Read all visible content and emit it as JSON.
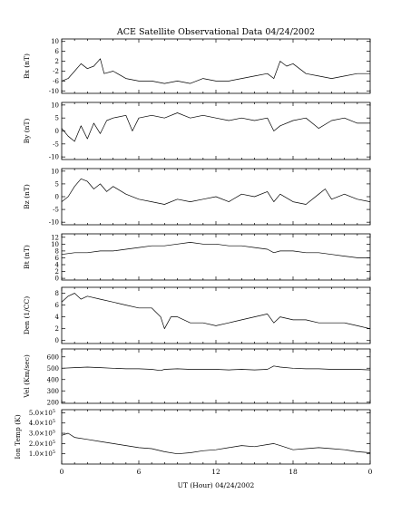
{
  "chart_data": {
    "type": "line",
    "title": "ACE Satellite Observational Data   04/24/2002",
    "xlabel": "UT (Hour)   04/24/2002",
    "x_tick_labels": [
      "0",
      "6",
      "12",
      "18",
      "0"
    ],
    "xlim": [
      0,
      24
    ],
    "panels": [
      {
        "ylabel": "Bx (nT)",
        "ylim": [
          -11,
          11
        ],
        "yticks": [
          10,
          6,
          2,
          -2,
          -6,
          -10
        ],
        "ytick_labels": [
          "10",
          "6",
          "2",
          "-2",
          "-6",
          "-10"
        ],
        "points": [
          [
            0,
            -6
          ],
          [
            0.5,
            -5
          ],
          [
            1,
            -2
          ],
          [
            1.5,
            1
          ],
          [
            2,
            -1
          ],
          [
            2.5,
            0
          ],
          [
            3,
            3
          ],
          [
            3.3,
            -3
          ],
          [
            4,
            -2
          ],
          [
            5,
            -5
          ],
          [
            6,
            -6
          ],
          [
            7,
            -6
          ],
          [
            8,
            -7
          ],
          [
            9,
            -6
          ],
          [
            10,
            -7
          ],
          [
            11,
            -5
          ],
          [
            12,
            -6
          ],
          [
            13,
            -6
          ],
          [
            14,
            -5
          ],
          [
            15,
            -4
          ],
          [
            16,
            -3
          ],
          [
            16.5,
            -5
          ],
          [
            17,
            2
          ],
          [
            17.5,
            0
          ],
          [
            18,
            1
          ],
          [
            19,
            -3
          ],
          [
            20,
            -4
          ],
          [
            21,
            -5
          ],
          [
            22,
            -4
          ],
          [
            23,
            -3
          ],
          [
            24,
            -3
          ]
        ]
      },
      {
        "ylabel": "By (nT)",
        "ylim": [
          -11,
          11
        ],
        "yticks": [
          10,
          5,
          0,
          -5,
          -10
        ],
        "ytick_labels": [
          "10",
          "5",
          "0",
          "-5",
          "-10"
        ],
        "points": [
          [
            0,
            1
          ],
          [
            0.5,
            -2
          ],
          [
            1,
            -4
          ],
          [
            1.5,
            2
          ],
          [
            2,
            -3
          ],
          [
            2.5,
            3
          ],
          [
            3,
            -1
          ],
          [
            3.5,
            4
          ],
          [
            4,
            5
          ],
          [
            5,
            6
          ],
          [
            5.5,
            0
          ],
          [
            6,
            5
          ],
          [
            7,
            6
          ],
          [
            8,
            5
          ],
          [
            9,
            7
          ],
          [
            10,
            5
          ],
          [
            11,
            6
          ],
          [
            12,
            5
          ],
          [
            13,
            4
          ],
          [
            14,
            5
          ],
          [
            15,
            4
          ],
          [
            16,
            5
          ],
          [
            16.5,
            0
          ],
          [
            17,
            2
          ],
          [
            18,
            4
          ],
          [
            19,
            5
          ],
          [
            20,
            1
          ],
          [
            21,
            4
          ],
          [
            22,
            5
          ],
          [
            23,
            3
          ],
          [
            24,
            3
          ]
        ]
      },
      {
        "ylabel": "Bz (nT)",
        "ylim": [
          -11,
          11
        ],
        "yticks": [
          10,
          5,
          0,
          -5,
          -10
        ],
        "ytick_labels": [
          "10",
          "5",
          "0",
          "-5",
          "-10"
        ],
        "points": [
          [
            0,
            -2
          ],
          [
            0.5,
            0
          ],
          [
            1,
            4
          ],
          [
            1.5,
            7
          ],
          [
            2,
            6
          ],
          [
            2.5,
            3
          ],
          [
            3,
            5
          ],
          [
            3.5,
            2
          ],
          [
            4,
            4
          ],
          [
            5,
            1
          ],
          [
            6,
            -1
          ],
          [
            7,
            -2
          ],
          [
            8,
            -3
          ],
          [
            9,
            -1
          ],
          [
            10,
            -2
          ],
          [
            11,
            -1
          ],
          [
            12,
            0
          ],
          [
            13,
            -2
          ],
          [
            14,
            1
          ],
          [
            15,
            0
          ],
          [
            16,
            2
          ],
          [
            16.5,
            -2
          ],
          [
            17,
            1
          ],
          [
            18,
            -2
          ],
          [
            19,
            -3
          ],
          [
            20,
            1
          ],
          [
            20.5,
            3
          ],
          [
            21,
            -1
          ],
          [
            22,
            1
          ],
          [
            23,
            -1
          ],
          [
            24,
            -2
          ]
        ]
      },
      {
        "ylabel": "Bt (nT)",
        "ylim": [
          -0.5,
          13
        ],
        "yticks": [
          12,
          10,
          8,
          6,
          4,
          2,
          0
        ],
        "ytick_labels": [
          "12",
          "10",
          "8",
          "6",
          "4",
          "2",
          "0"
        ],
        "points": [
          [
            0,
            7
          ],
          [
            1,
            7.5
          ],
          [
            2,
            7.5
          ],
          [
            3,
            8
          ],
          [
            4,
            8
          ],
          [
            5,
            8.5
          ],
          [
            6,
            9
          ],
          [
            7,
            9.5
          ],
          [
            8,
            9.5
          ],
          [
            9,
            10
          ],
          [
            10,
            10.5
          ],
          [
            11,
            10
          ],
          [
            12,
            10
          ],
          [
            13,
            9.5
          ],
          [
            14,
            9.5
          ],
          [
            15,
            9
          ],
          [
            16,
            8.5
          ],
          [
            16.5,
            7.5
          ],
          [
            17,
            8
          ],
          [
            18,
            8
          ],
          [
            19,
            7.5
          ],
          [
            20,
            7.5
          ],
          [
            21,
            7
          ],
          [
            22,
            6.5
          ],
          [
            23,
            6
          ],
          [
            24,
            6
          ]
        ]
      },
      {
        "ylabel": "Den (1/CC)",
        "ylim": [
          -0.5,
          9
        ],
        "yticks": [
          8,
          6,
          4,
          2,
          0
        ],
        "ytick_labels": [
          "8",
          "6",
          "4",
          "2",
          "0"
        ],
        "points": [
          [
            0,
            6.5
          ],
          [
            0.5,
            7.5
          ],
          [
            1,
            8
          ],
          [
            1.5,
            7
          ],
          [
            2,
            7.5
          ],
          [
            3,
            7
          ],
          [
            4,
            6.5
          ],
          [
            5,
            6
          ],
          [
            6,
            5.5
          ],
          [
            7,
            5.5
          ],
          [
            7.7,
            4
          ],
          [
            8,
            2
          ],
          [
            8.5,
            4
          ],
          [
            9,
            4
          ],
          [
            10,
            3
          ],
          [
            11,
            3
          ],
          [
            12,
            2.5
          ],
          [
            13,
            3
          ],
          [
            14,
            3.5
          ],
          [
            15,
            4
          ],
          [
            16,
            4.5
          ],
          [
            16.5,
            3
          ],
          [
            17,
            4
          ],
          [
            18,
            3.5
          ],
          [
            19,
            3.5
          ],
          [
            20,
            3
          ],
          [
            21,
            3
          ],
          [
            22,
            3
          ],
          [
            23,
            2.5
          ],
          [
            24,
            2
          ]
        ]
      },
      {
        "ylabel": "Vel (Km/sec)",
        "ylim": [
          190,
          670
        ],
        "yticks": [
          600,
          500,
          400,
          300,
          200
        ],
        "ytick_labels": [
          "600",
          "500",
          "400",
          "300",
          "200"
        ],
        "points": [
          [
            0,
            500
          ],
          [
            1,
            505
          ],
          [
            2,
            510
          ],
          [
            3,
            505
          ],
          [
            4,
            500
          ],
          [
            5,
            495
          ],
          [
            6,
            495
          ],
          [
            7,
            490
          ],
          [
            7.7,
            480
          ],
          [
            8,
            490
          ],
          [
            9,
            495
          ],
          [
            10,
            490
          ],
          [
            11,
            490
          ],
          [
            12,
            490
          ],
          [
            13,
            485
          ],
          [
            14,
            490
          ],
          [
            15,
            485
          ],
          [
            16,
            490
          ],
          [
            16.5,
            520
          ],
          [
            17,
            510
          ],
          [
            18,
            500
          ],
          [
            19,
            495
          ],
          [
            20,
            495
          ],
          [
            21,
            490
          ],
          [
            22,
            490
          ],
          [
            23,
            490
          ],
          [
            24,
            485
          ]
        ]
      },
      {
        "ylabel": "Ion Temp (K)",
        "ylim": [
          0,
          530000
        ],
        "yticks": [
          500000,
          400000,
          300000,
          200000,
          100000
        ],
        "ytick_labels": [
          "5.0×10",
          "4.0×10",
          "3.0×10",
          "2.0×10",
          "1.0×10"
        ],
        "ytick_exponent": "5",
        "points": [
          [
            0,
            280000
          ],
          [
            0.5,
            300000
          ],
          [
            1,
            260000
          ],
          [
            2,
            240000
          ],
          [
            3,
            220000
          ],
          [
            4,
            200000
          ],
          [
            5,
            180000
          ],
          [
            6,
            160000
          ],
          [
            7,
            150000
          ],
          [
            8,
            120000
          ],
          [
            9,
            100000
          ],
          [
            10,
            110000
          ],
          [
            11,
            130000
          ],
          [
            12,
            140000
          ],
          [
            13,
            160000
          ],
          [
            14,
            180000
          ],
          [
            15,
            170000
          ],
          [
            16,
            190000
          ],
          [
            16.5,
            200000
          ],
          [
            17,
            180000
          ],
          [
            18,
            140000
          ],
          [
            19,
            150000
          ],
          [
            20,
            160000
          ],
          [
            21,
            150000
          ],
          [
            22,
            140000
          ],
          [
            23,
            120000
          ],
          [
            24,
            110000
          ]
        ]
      }
    ]
  }
}
